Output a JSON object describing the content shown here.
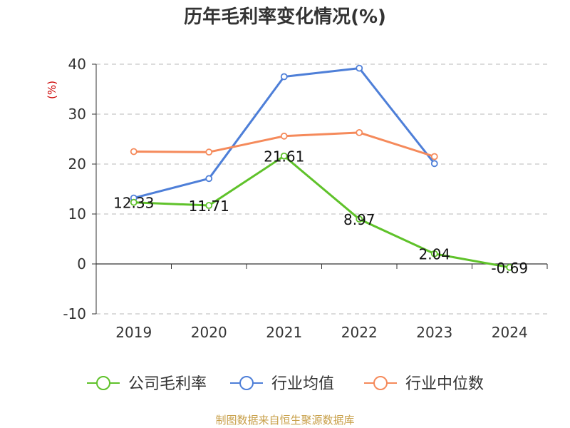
{
  "chart_data": {
    "type": "line",
    "title": "历年毛利率变化情况(%)",
    "ylabel": "(%)",
    "categories": [
      "2019",
      "2020",
      "2021",
      "2022",
      "2023",
      "2024"
    ],
    "ylim": [
      -10,
      40
    ],
    "yticks": [
      "-10",
      "0",
      "10",
      "20",
      "30",
      "40"
    ],
    "grid": true,
    "legend_position": "bottom",
    "series": [
      {
        "name": "公司毛利率",
        "color": "#5fc22a",
        "values": [
          12.33,
          11.71,
          21.61,
          8.97,
          2.04,
          -0.69
        ],
        "labels": [
          "12.33",
          "11.71",
          "21.61",
          "8.97",
          "2.04",
          "-0.69"
        ]
      },
      {
        "name": "行业均值",
        "color": "#4e7fd8",
        "values": [
          13.2,
          17.1,
          37.5,
          39.2,
          20.1,
          null
        ]
      },
      {
        "name": "行业中位数",
        "color": "#f58a5b",
        "values": [
          22.5,
          22.4,
          25.6,
          26.3,
          21.5,
          null
        ]
      }
    ]
  },
  "footer": {
    "source": "制图数据来自恒生聚源数据库"
  }
}
